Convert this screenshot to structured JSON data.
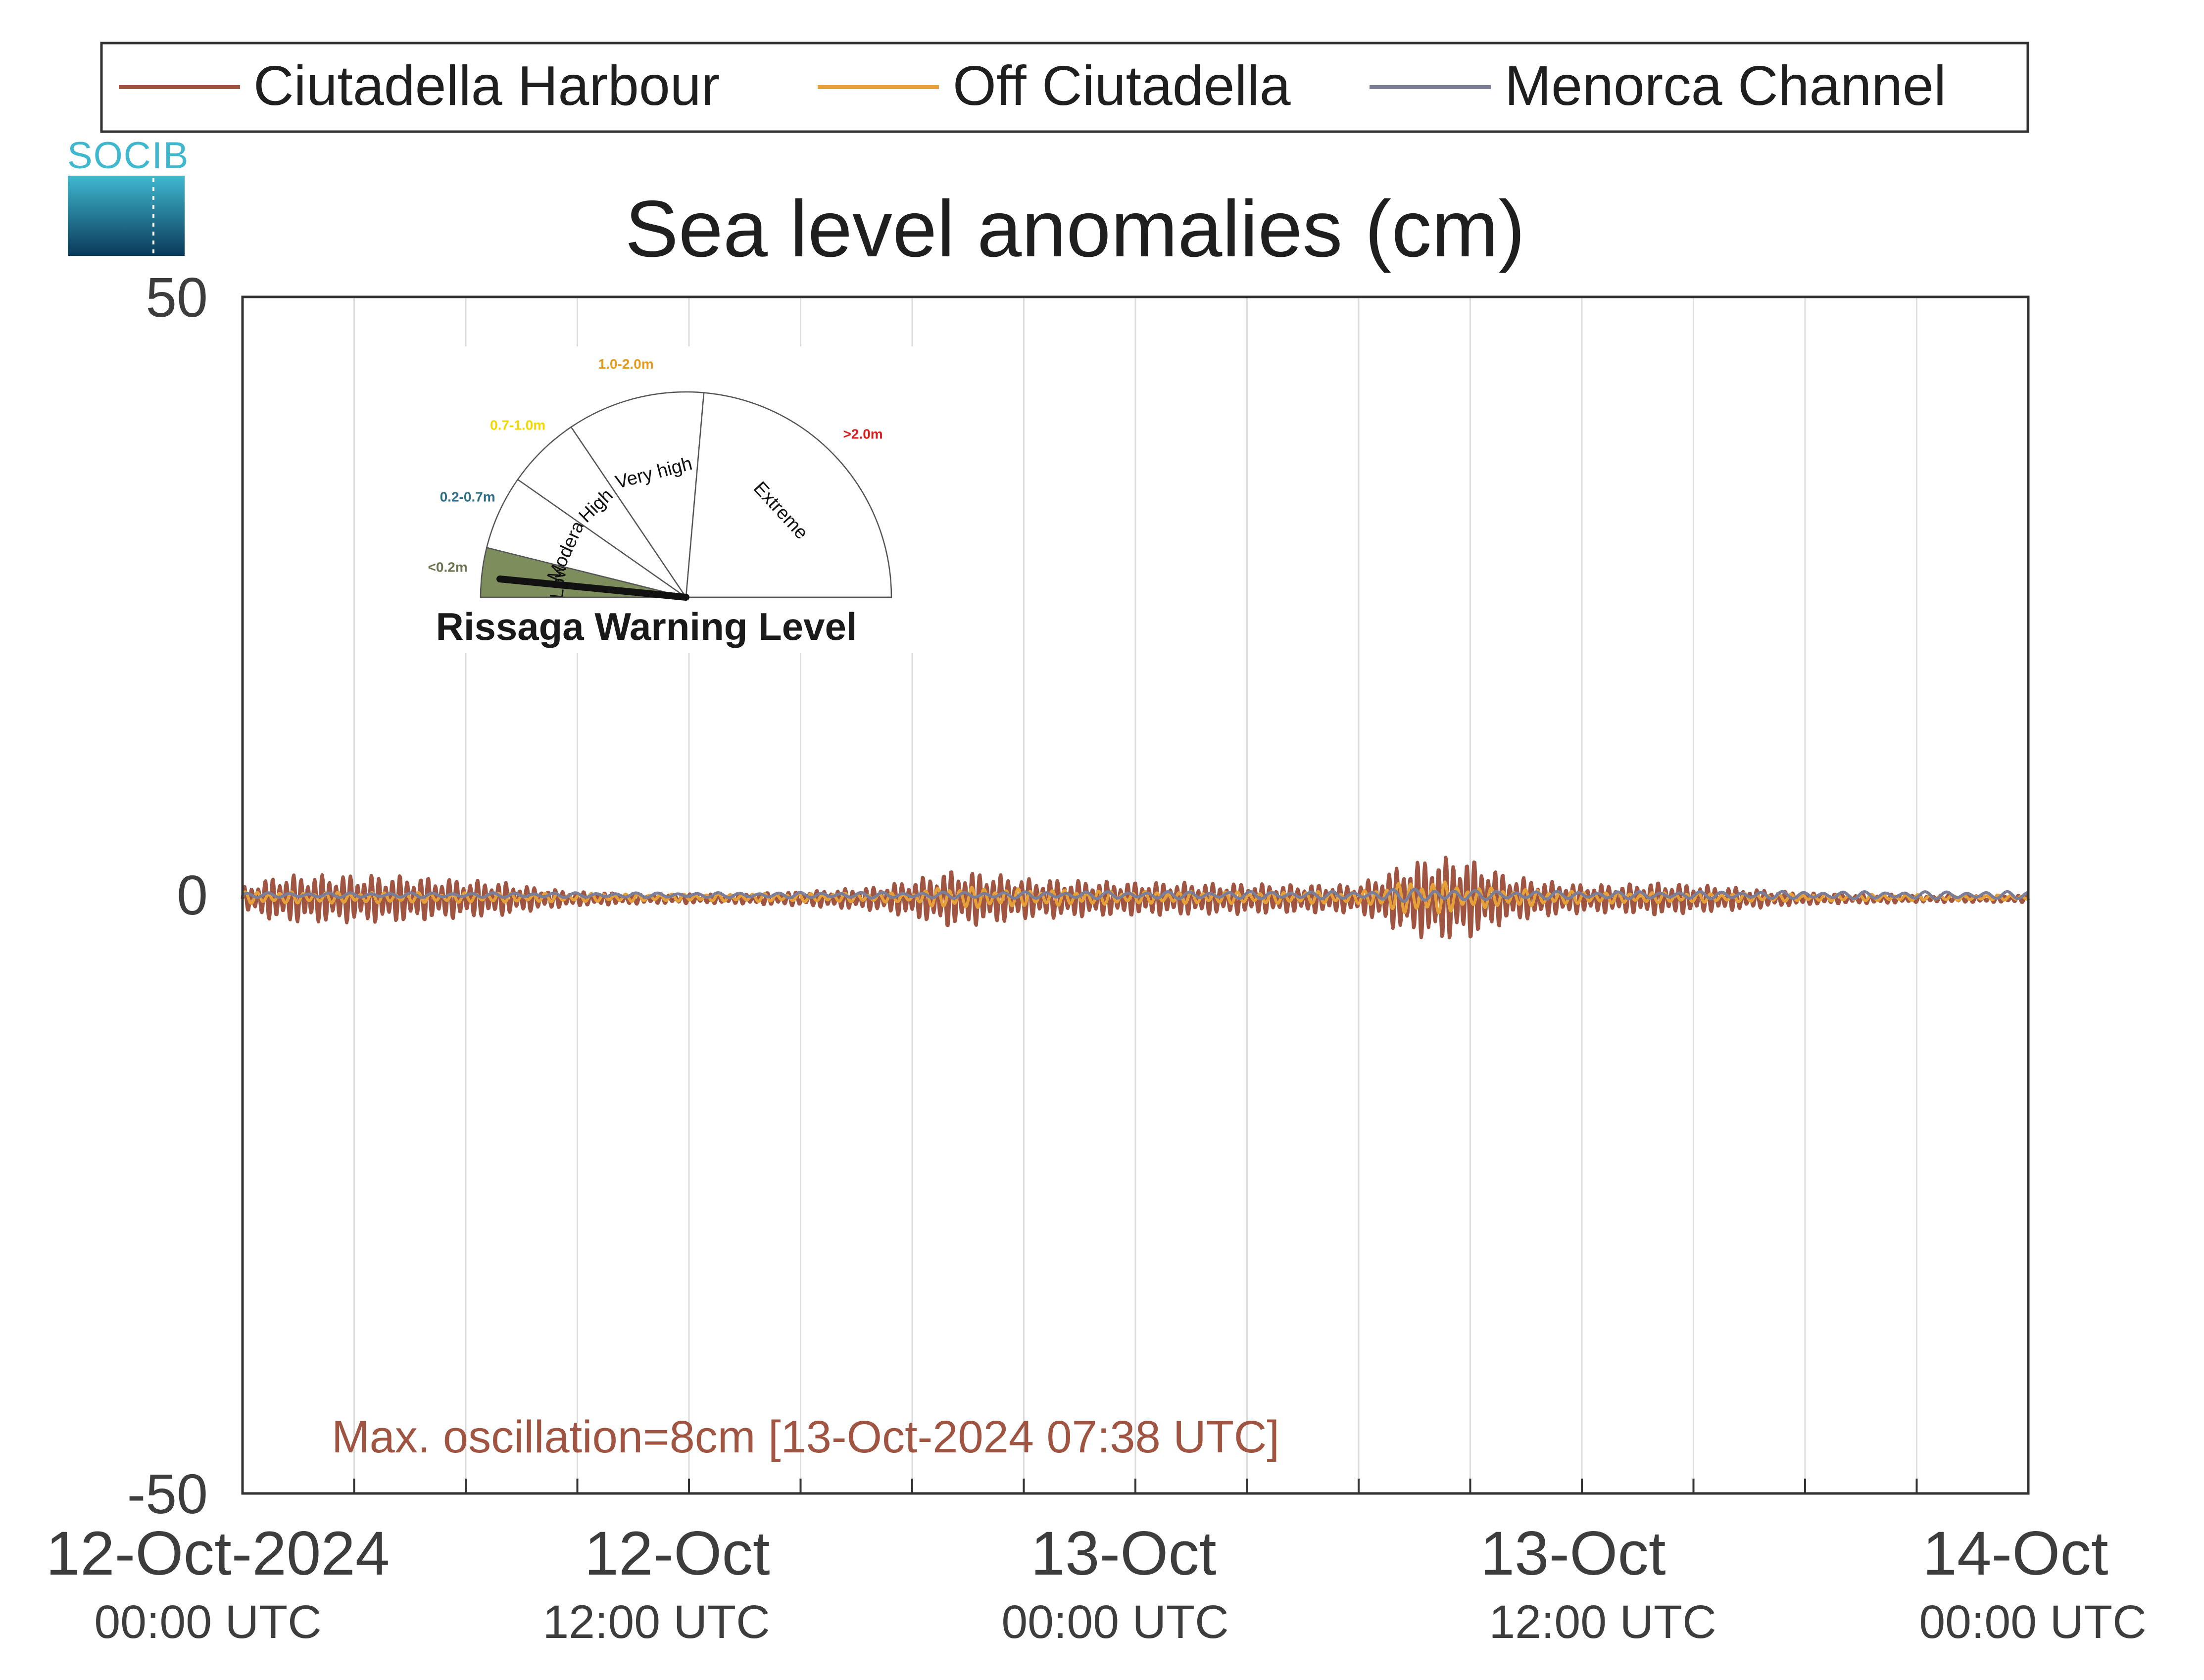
{
  "legend": {
    "items": [
      {
        "label": "Ciutadella Harbour",
        "color": "#a05543"
      },
      {
        "label": "Off Ciutadella",
        "color": "#e6a03a"
      },
      {
        "label": "Menorca Channel",
        "color": "#7a7e99"
      }
    ]
  },
  "logo": {
    "text": "SOCIB",
    "colors": [
      "#3fb8cf",
      "#0a3a5a"
    ]
  },
  "gauge": {
    "title": "Rissaga Warning Level",
    "current_level": "Low",
    "sectors": [
      {
        "label": "Low",
        "range": "<0.2m",
        "range_color": "#6b7350",
        "fill": "#7d8d5b"
      },
      {
        "label": "Moderate",
        "range": "0.2-0.7m",
        "range_color": "#2f6d86",
        "fill": "#ffffff"
      },
      {
        "label": "High",
        "range": "0.7-1.0m",
        "range_color": "#f0d800",
        "fill": "#ffffff"
      },
      {
        "label": "Very high",
        "range": "1.0-2.0m",
        "range_color": "#e79a1c",
        "fill": "#ffffff"
      },
      {
        "label": "Extreme",
        "range": ">2.0m",
        "range_color": "#d81e1e",
        "fill": "#ffffff"
      }
    ]
  },
  "chart_data": {
    "type": "line",
    "title": "Sea level anomalies (cm)",
    "xlabel": "",
    "ylabel": "",
    "ylim": [
      -50,
      50
    ],
    "yticks": [
      "50",
      "0",
      "-50"
    ],
    "xlim": [
      "12-Oct-2024 00:00 UTC",
      "14-Oct-2024 00:00 UTC"
    ],
    "xticks": [
      {
        "line1": "12-Oct-2024",
        "line2": "00:00 UTC"
      },
      {
        "line1": "12-Oct",
        "line2": "12:00 UTC"
      },
      {
        "line1": "13-Oct",
        "line2": "00:00 UTC"
      },
      {
        "line1": "13-Oct",
        "line2": "12:00 UTC"
      },
      {
        "line1": "14-Oct",
        "line2": "00:00 UTC"
      }
    ],
    "grid": true,
    "legend_position": "top",
    "annotation": "Max. oscillation=8cm [13-Oct-2024 07:38 UTC]",
    "series": [
      {
        "name": "Ciutadella Harbour",
        "x_hours": [
          0,
          1,
          2,
          3,
          4,
          5,
          6,
          7,
          8,
          9,
          10,
          11,
          12,
          13,
          14,
          15,
          16,
          17,
          18,
          19,
          20,
          21,
          22,
          23,
          24,
          25,
          26,
          27,
          28,
          29,
          30,
          31,
          32,
          33,
          34,
          35,
          36,
          37,
          38,
          39,
          40,
          41,
          42,
          43,
          44,
          45,
          46,
          47,
          48
        ],
        "envelope": [
          1.0,
          2.0,
          2.0,
          2.0,
          2.0,
          1.8,
          1.6,
          1.4,
          0.9,
          0.6,
          0.5,
          0.4,
          0.4,
          0.4,
          0.5,
          0.6,
          0.8,
          1.0,
          1.6,
          2.4,
          2.2,
          1.7,
          1.6,
          1.5,
          1.4,
          1.4,
          1.3,
          1.3,
          1.2,
          1.2,
          1.2,
          2.6,
          3.6,
          3.4,
          2.0,
          1.5,
          1.2,
          1.2,
          1.4,
          1.2,
          1.0,
          0.7,
          0.5,
          0.4,
          0.4,
          0.3,
          0.3,
          0.3,
          0.3
        ],
        "mean": -0.3
      },
      {
        "name": "Off Ciutadella",
        "x_hours": [
          0,
          6,
          12,
          18,
          19,
          20,
          24,
          30,
          31,
          32,
          33,
          36,
          42,
          48
        ],
        "envelope": [
          0.5,
          0.4,
          0.3,
          0.4,
          1.0,
          0.8,
          0.5,
          0.5,
          1.2,
          1.5,
          0.9,
          0.5,
          0.3,
          0.2
        ],
        "mean": -0.2
      },
      {
        "name": "Menorca Channel",
        "x_hours": [
          0,
          12,
          24,
          30,
          31,
          32,
          33,
          36,
          42,
          48
        ],
        "envelope": [
          0.2,
          0.2,
          0.3,
          0.3,
          0.5,
          0.6,
          0.4,
          0.3,
          0.3,
          0.3
        ],
        "mean": 0.0
      }
    ]
  }
}
